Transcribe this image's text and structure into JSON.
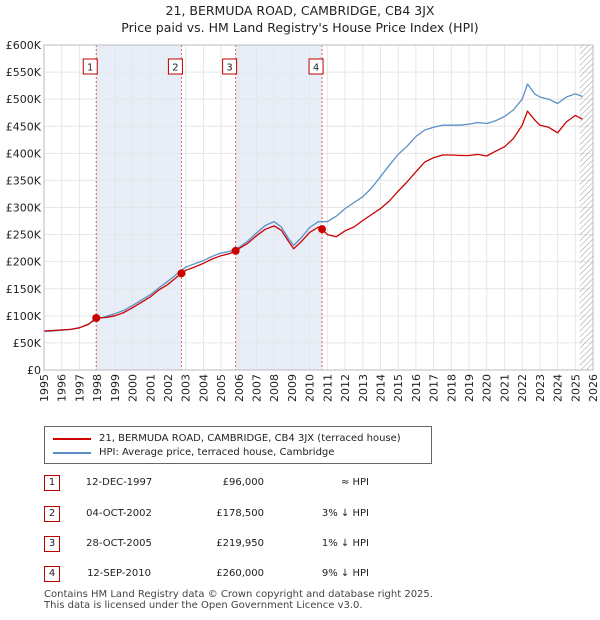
{
  "chart_data": {
    "type": "line",
    "title": "21, BERMUDA ROAD, CAMBRIDGE, CB4 3JX",
    "subtitle": "Price paid vs. HM Land Registry's House Price Index (HPI)",
    "xlabel": "",
    "ylabel": "",
    "xlim": [
      1995,
      2026
    ],
    "ylim": [
      0,
      600000
    ],
    "grid": true,
    "x_ticks": [
      "1995",
      "1996",
      "1997",
      "1998",
      "1999",
      "2000",
      "2001",
      "2002",
      "2003",
      "2004",
      "2005",
      "2006",
      "2007",
      "2008",
      "2009",
      "2010",
      "2011",
      "2012",
      "2013",
      "2014",
      "2015",
      "2016",
      "2017",
      "2018",
      "2019",
      "2020",
      "2021",
      "2022",
      "2023",
      "2024",
      "2025",
      "2026"
    ],
    "y_ticks": [
      {
        "value": 0,
        "label": "£0"
      },
      {
        "value": 50000,
        "label": "£50K"
      },
      {
        "value": 100000,
        "label": "£100K"
      },
      {
        "value": 150000,
        "label": "£150K"
      },
      {
        "value": 200000,
        "label": "£200K"
      },
      {
        "value": 250000,
        "label": "£250K"
      },
      {
        "value": 300000,
        "label": "£300K"
      },
      {
        "value": 350000,
        "label": "£350K"
      },
      {
        "value": 400000,
        "label": "£400K"
      },
      {
        "value": 450000,
        "label": "£450K"
      },
      {
        "value": 500000,
        "label": "£500K"
      },
      {
        "value": 550000,
        "label": "£550K"
      },
      {
        "value": 600000,
        "label": "£600K"
      }
    ],
    "series": [
      {
        "name": "21, BERMUDA ROAD, CAMBRIDGE, CB4 3JX (terraced house)",
        "color": "#cc0000",
        "points": [
          [
            1995.0,
            72000
          ],
          [
            1995.5,
            73000
          ],
          [
            1996.0,
            74000
          ],
          [
            1996.5,
            75000
          ],
          [
            1997.0,
            78000
          ],
          [
            1997.5,
            84000
          ],
          [
            1997.95,
            96000
          ],
          [
            1998.5,
            97000
          ],
          [
            1999.0,
            100000
          ],
          [
            1999.5,
            106000
          ],
          [
            2000.0,
            115000
          ],
          [
            2000.5,
            125000
          ],
          [
            2001.0,
            135000
          ],
          [
            2001.5,
            148000
          ],
          [
            2002.0,
            158000
          ],
          [
            2002.76,
            178500
          ],
          [
            2003.0,
            184000
          ],
          [
            2003.5,
            190000
          ],
          [
            2004.0,
            197000
          ],
          [
            2004.5,
            205000
          ],
          [
            2005.0,
            211000
          ],
          [
            2005.5,
            215000
          ],
          [
            2005.82,
            219950
          ],
          [
            2006.0,
            224000
          ],
          [
            2006.5,
            234000
          ],
          [
            2007.0,
            248000
          ],
          [
            2007.5,
            260000
          ],
          [
            2008.0,
            266000
          ],
          [
            2008.4,
            258000
          ],
          [
            2008.8,
            238000
          ],
          [
            2009.1,
            224000
          ],
          [
            2009.5,
            236000
          ],
          [
            2010.0,
            254000
          ],
          [
            2010.5,
            264000
          ],
          [
            2010.7,
            260000
          ],
          [
            2011.0,
            250000
          ],
          [
            2011.5,
            246000
          ],
          [
            2012.0,
            257000
          ],
          [
            2012.5,
            264000
          ],
          [
            2013.0,
            276000
          ],
          [
            2013.5,
            287000
          ],
          [
            2014.0,
            298000
          ],
          [
            2014.5,
            312000
          ],
          [
            2015.0,
            330000
          ],
          [
            2015.5,
            347000
          ],
          [
            2016.0,
            366000
          ],
          [
            2016.5,
            384000
          ],
          [
            2017.0,
            392000
          ],
          [
            2017.5,
            397000
          ],
          [
            2018.0,
            397000
          ],
          [
            2018.5,
            396000
          ],
          [
            2019.0,
            396000
          ],
          [
            2019.5,
            398000
          ],
          [
            2020.0,
            395000
          ],
          [
            2020.5,
            404000
          ],
          [
            2021.0,
            412000
          ],
          [
            2021.5,
            427000
          ],
          [
            2022.0,
            452000
          ],
          [
            2022.3,
            478000
          ],
          [
            2022.7,
            462000
          ],
          [
            2023.0,
            452000
          ],
          [
            2023.5,
            448000
          ],
          [
            2024.0,
            438000
          ],
          [
            2024.5,
            458000
          ],
          [
            2025.0,
            470000
          ],
          [
            2025.4,
            463000
          ]
        ]
      },
      {
        "name": "HPI: Average price, terraced house, Cambridge",
        "color": "#5b8ec7",
        "points": [
          [
            1995.0,
            71000
          ],
          [
            1995.5,
            72000
          ],
          [
            1996.0,
            73500
          ],
          [
            1996.5,
            75000
          ],
          [
            1997.0,
            78000
          ],
          [
            1997.5,
            85000
          ],
          [
            1998.0,
            94000
          ],
          [
            1998.5,
            99000
          ],
          [
            1999.0,
            104000
          ],
          [
            1999.5,
            110000
          ],
          [
            2000.0,
            119000
          ],
          [
            2000.5,
            129000
          ],
          [
            2001.0,
            139000
          ],
          [
            2001.5,
            152000
          ],
          [
            2002.0,
            164000
          ],
          [
            2002.76,
            184000
          ],
          [
            2003.0,
            190000
          ],
          [
            2003.5,
            196000
          ],
          [
            2004.0,
            202000
          ],
          [
            2004.5,
            210000
          ],
          [
            2005.0,
            216000
          ],
          [
            2005.5,
            219000
          ],
          [
            2006.0,
            226000
          ],
          [
            2006.5,
            238000
          ],
          [
            2007.0,
            253000
          ],
          [
            2007.5,
            267000
          ],
          [
            2008.0,
            274000
          ],
          [
            2008.4,
            264000
          ],
          [
            2008.8,
            243000
          ],
          [
            2009.1,
            230000
          ],
          [
            2009.5,
            243000
          ],
          [
            2010.0,
            263000
          ],
          [
            2010.5,
            274000
          ],
          [
            2011.0,
            274000
          ],
          [
            2011.5,
            284000
          ],
          [
            2012.0,
            298000
          ],
          [
            2012.5,
            309000
          ],
          [
            2013.0,
            320000
          ],
          [
            2013.5,
            336000
          ],
          [
            2014.0,
            357000
          ],
          [
            2014.5,
            378000
          ],
          [
            2015.0,
            398000
          ],
          [
            2015.5,
            413000
          ],
          [
            2016.0,
            431000
          ],
          [
            2016.5,
            443000
          ],
          [
            2017.0,
            448000
          ],
          [
            2017.5,
            452000
          ],
          [
            2018.0,
            452000
          ],
          [
            2018.5,
            452000
          ],
          [
            2019.0,
            454000
          ],
          [
            2019.5,
            457000
          ],
          [
            2020.0,
            455000
          ],
          [
            2020.5,
            460000
          ],
          [
            2021.0,
            468000
          ],
          [
            2021.5,
            480000
          ],
          [
            2022.0,
            500000
          ],
          [
            2022.3,
            528000
          ],
          [
            2022.7,
            510000
          ],
          [
            2023.0,
            504000
          ],
          [
            2023.5,
            500000
          ],
          [
            2024.0,
            492000
          ],
          [
            2024.5,
            504000
          ],
          [
            2025.0,
            510000
          ],
          [
            2025.4,
            505000
          ]
        ]
      }
    ],
    "sales": [
      {
        "id": "1",
        "x": 1997.95,
        "price": 96000,
        "date": "12-DEC-1997",
        "price_label": "£96,000",
        "delta": "≈ HPI"
      },
      {
        "id": "2",
        "x": 2002.76,
        "price": 178500,
        "date": "04-OCT-2002",
        "price_label": "£178,500",
        "delta": "3% ↓ HPI"
      },
      {
        "id": "3",
        "x": 2005.82,
        "price": 219950,
        "date": "28-OCT-2005",
        "price_label": "£219,950",
        "delta": "1% ↓ HPI"
      },
      {
        "id": "4",
        "x": 2010.7,
        "price": 260000,
        "date": "12-SEP-2010",
        "price_label": "£260,000",
        "delta": "9% ↓ HPI"
      }
    ],
    "shaded_regions": [
      [
        1997.95,
        2002.76
      ],
      [
        2005.82,
        2010.7
      ]
    ],
    "hatched_from": 2025.25,
    "colors": {
      "shade": "#e8eef8",
      "grid": "#e6e6e6",
      "vline": "#e06060"
    }
  },
  "legend": {
    "property_label": "21, BERMUDA ROAD, CAMBRIDGE, CB4 3JX (terraced house)",
    "hpi_label": "HPI: Average price, terraced house, Cambridge"
  },
  "footer": {
    "line1": "Contains HM Land Registry data © Crown copyright and database right 2025.",
    "line2": "This data is licensed under the Open Government Licence v3.0."
  }
}
